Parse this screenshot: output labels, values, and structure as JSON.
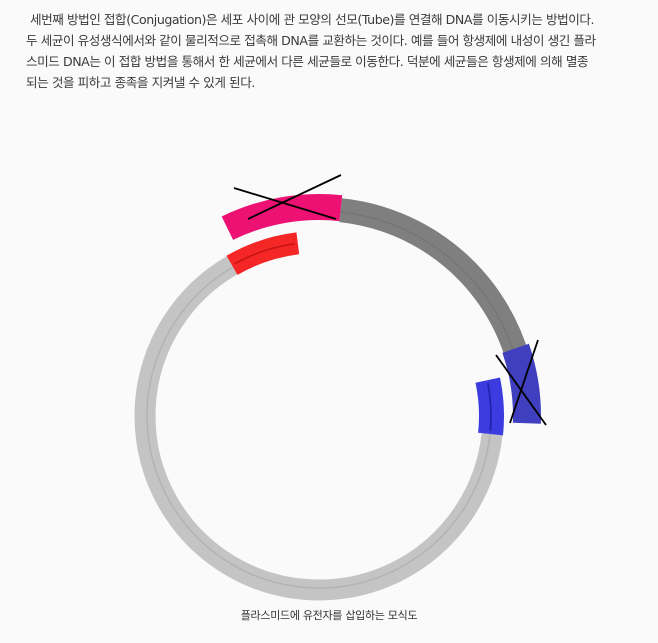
{
  "article": {
    "paragraph_lines": [
      "세번째 방법인 접합(Conjugation)은 세포 사이에 관 모양의 선모(Tube)를 연결해 DNA를 이동시키는 방법이다.",
      "두 세균이 유성생식에서와 같이 물리적으로 접촉해 DNA를 교환하는 것이다. 예를 들어 항생제에 내성이 생긴 플라",
      "스미드 DNA는 이 접합 방법을 통해서 한 세균에서 다른 세균들로 이동한다. 덕분에 세균들은 항생제에 의해 멸종",
      "되는 것을 피하고 종족을 지켜낼 수 있게 된다."
    ]
  },
  "diagram": {
    "caption": "플라스미드에 유전자를 삽입하는 모식도",
    "colors": {
      "plasmid_ring": "#c4c4c4",
      "plasmid_inner_line": "#b3b3b3",
      "removed_arc": "#7f7f7f",
      "removed_inner_line": "#767676",
      "pink_insert": "#ec1173",
      "red_segment": "#f42626",
      "red_inner_line": "#c81414",
      "blue_outer": "#3f3fbf",
      "blue_inner": "#3b3be0",
      "blue_inner_line": "#2020a8",
      "cross_mark": "#000000"
    }
  }
}
